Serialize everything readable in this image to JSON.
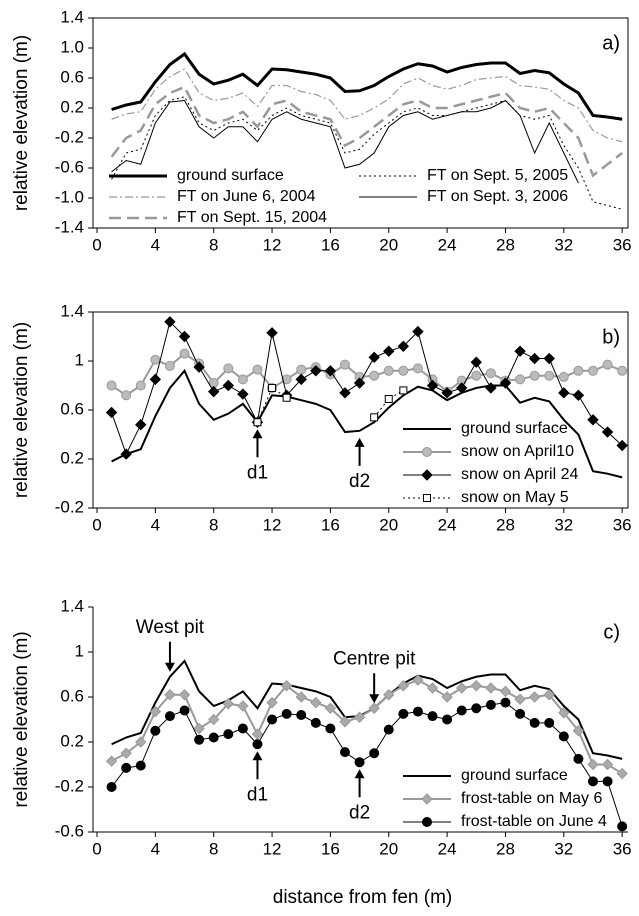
{
  "chart_data": [
    {
      "type": "line",
      "panel_label": "a)",
      "y_label": "relative elevation (m)",
      "x": [
        1,
        2,
        3,
        4,
        5,
        6,
        7,
        8,
        9,
        10,
        11,
        12,
        13,
        14,
        15,
        16,
        17,
        18,
        19,
        20,
        21,
        22,
        23,
        24,
        25,
        26,
        27,
        28,
        29,
        30,
        31,
        32,
        33,
        34,
        35,
        36
      ],
      "xlim": [
        0,
        36.4
      ],
      "xticks": [
        0,
        4,
        8,
        12,
        16,
        20,
        24,
        28,
        32,
        36
      ],
      "ylim": [
        -1.4,
        1.4
      ],
      "yticks": [
        1.4,
        {
          "value": 1,
          "label": "1.0"
        },
        0.6,
        0.2,
        -0.2,
        -0.6,
        {
          "value": -1,
          "label": "-1.0"
        },
        -1.4
      ],
      "legend": "lower left",
      "legend_columns": 2,
      "series": [
        {
          "name": "ground surface",
          "color": "#000000",
          "width": 3,
          "dash": "solid",
          "values": [
            0.18,
            0.24,
            0.28,
            0.55,
            0.78,
            0.92,
            0.65,
            0.52,
            0.57,
            0.65,
            0.5,
            0.72,
            0.71,
            0.68,
            0.65,
            0.6,
            0.42,
            0.43,
            0.5,
            0.62,
            0.72,
            0.79,
            0.76,
            0.68,
            0.74,
            0.78,
            0.8,
            0.8,
            0.66,
            0.7,
            0.67,
            0.52,
            0.4,
            0.1,
            0.08,
            0.05
          ]
        },
        {
          "name": "FT on Sept. 5, 2005",
          "color": "#000000",
          "width": 1,
          "dash": "dot",
          "values": [
            -0.75,
            -0.4,
            -0.35,
            0.1,
            0.3,
            0.35,
            0,
            -0.1,
            0,
            0.05,
            -0.1,
            0.1,
            0.2,
            0.1,
            0.05,
            0,
            -0.4,
            -0.35,
            -0.15,
            0,
            0.15,
            0.2,
            0.1,
            0.1,
            0.15,
            0.2,
            0.25,
            0.3,
            0.1,
            0.05,
            0.1,
            -0.3,
            -0.6,
            -1.05,
            -1.1,
            -1.15
          ]
        },
        {
          "name": "FT on June 6, 2004",
          "color": "#999999",
          "width": 1.2,
          "dash": "dashdot",
          "values": [
            0.05,
            0.12,
            0.15,
            0.45,
            0.62,
            0.72,
            0.4,
            0.3,
            0.33,
            0.4,
            0.22,
            0.5,
            0.5,
            0.42,
            0.38,
            0.3,
            0.05,
            0.1,
            0.2,
            0.32,
            0.52,
            0.6,
            0.5,
            0.45,
            0.5,
            0.58,
            0.6,
            0.62,
            0.5,
            0.48,
            0.45,
            0.3,
            0.2,
            -0.1,
            -0.2,
            -0.25
          ]
        },
        {
          "name": "FT on Sept. 3, 2006",
          "color": "#000000",
          "width": 1,
          "dash": "solid",
          "values": [
            -0.65,
            -0.5,
            -0.55,
            0,
            0.28,
            0.3,
            -0.05,
            -0.2,
            -0.05,
            -0.05,
            -0.25,
            0.05,
            0.15,
            0.05,
            0,
            -0.05,
            -0.6,
            -0.55,
            -0.4,
            -0.05,
            0.1,
            0.15,
            0.05,
            0.1,
            0.15,
            0.15,
            0.2,
            0.3,
            0.1,
            -0.4,
            0,
            -0.4,
            -0.8,
            null,
            null,
            null
          ]
        },
        {
          "name": "FT on Sept. 15, 2004",
          "color": "#999999",
          "width": 2.5,
          "dash": "dash",
          "values": [
            -0.45,
            -0.2,
            -0.1,
            0.25,
            0.4,
            0.48,
            0.1,
            0,
            0.05,
            0.15,
            -0.05,
            0.25,
            0.3,
            0.15,
            0.1,
            0.05,
            -0.3,
            -0.2,
            -0.05,
            0.1,
            0.25,
            0.3,
            0.2,
            0.2,
            0.25,
            0.3,
            0.35,
            0.4,
            0.2,
            0.15,
            0.2,
            0,
            -0.2,
            -0.7,
            -0.55,
            -0.4
          ]
        }
      ]
    },
    {
      "type": "line",
      "panel_label": "b)",
      "y_label": "relative elevation (m)",
      "x": [
        1,
        2,
        3,
        4,
        5,
        6,
        7,
        8,
        9,
        10,
        11,
        12,
        13,
        14,
        15,
        16,
        17,
        18,
        19,
        20,
        21,
        22,
        23,
        24,
        25,
        26,
        27,
        28,
        29,
        30,
        31,
        32,
        33,
        34,
        35,
        36
      ],
      "xlim": [
        0,
        36.4
      ],
      "xticks": [
        0,
        4,
        8,
        12,
        16,
        20,
        24,
        28,
        32,
        36
      ],
      "ylim": [
        -0.2,
        1.4
      ],
      "yticks": [
        1.4,
        1,
        0.6,
        0.2,
        -0.2
      ],
      "legend": "lower right",
      "legend_columns": 1,
      "annotations": [
        {
          "text": "d1",
          "x": 11,
          "side": "below"
        },
        {
          "text": "d2",
          "x": 18,
          "side": "below"
        }
      ],
      "series": [
        {
          "name": "ground surface",
          "color": "#000000",
          "width": 2,
          "dash": "solid",
          "values": [
            0.18,
            0.24,
            0.28,
            0.55,
            0.78,
            0.92,
            0.65,
            0.52,
            0.57,
            0.65,
            0.5,
            0.72,
            0.71,
            0.68,
            0.65,
            0.6,
            0.42,
            0.43,
            0.5,
            0.62,
            0.72,
            0.79,
            0.76,
            0.68,
            0.74,
            0.78,
            0.8,
            0.8,
            0.66,
            0.7,
            0.67,
            0.52,
            0.4,
            0.1,
            0.08,
            0.05
          ]
        },
        {
          "name": "snow on April10",
          "color": "#999999",
          "width": 2,
          "dash": "solid",
          "marker": "circle",
          "marker_fill": "#bbbbbb",
          "values": [
            0.8,
            0.72,
            0.8,
            1.01,
            0.96,
            1.06,
            0.98,
            0.82,
            0.94,
            0.85,
            0.93,
            0.78,
            0.85,
            0.93,
            0.95,
            0.89,
            0.97,
            0.87,
            0.88,
            0.92,
            0.92,
            0.94,
            0.85,
            0.75,
            0.84,
            0.88,
            0.9,
            0.84,
            0.85,
            0.88,
            0.88,
            0.87,
            0.92,
            0.92,
            0.97,
            0.92
          ]
        },
        {
          "name": "snow on April 24",
          "color": "#000000",
          "width": 1,
          "dash": "solid",
          "marker": "diamond",
          "marker_fill": "#000000",
          "values": [
            0.58,
            0.24,
            0.48,
            0.85,
            1.32,
            1.2,
            0.95,
            0.75,
            0.8,
            0.73,
            0.5,
            1.23,
            0.72,
            0.85,
            0.92,
            0.92,
            0.74,
            0.82,
            1.03,
            1.08,
            1.12,
            1.24,
            0.8,
            0.74,
            0.78,
            0.99,
            0.78,
            0.82,
            1.08,
            1.02,
            1.02,
            0.74,
            0.72,
            0.52,
            0.42,
            0.31
          ]
        },
        {
          "name": "snow on May 5",
          "color": "#000000",
          "width": 1,
          "dash": "dot",
          "marker": "square",
          "marker_fill": "#ffffff",
          "values": [
            null,
            null,
            null,
            null,
            null,
            null,
            null,
            null,
            null,
            null,
            0.5,
            0.78,
            0.7,
            null,
            null,
            null,
            null,
            null,
            0.54,
            0.69,
            0.76,
            null,
            null,
            null,
            null,
            null,
            null,
            null,
            null,
            null,
            null,
            null,
            null,
            null,
            null,
            null
          ]
        }
      ]
    },
    {
      "type": "line",
      "panel_label": "c)",
      "y_label": "relative elevation (m)",
      "x_label": "distance from fen (m)",
      "x": [
        1,
        2,
        3,
        4,
        5,
        6,
        7,
        8,
        9,
        10,
        11,
        12,
        13,
        14,
        15,
        16,
        17,
        18,
        19,
        20,
        21,
        22,
        23,
        24,
        25,
        26,
        27,
        28,
        29,
        30,
        31,
        32,
        33,
        34,
        35,
        36
      ],
      "xlim": [
        0,
        36.4
      ],
      "xticks": [
        0,
        4,
        8,
        12,
        16,
        20,
        24,
        28,
        32,
        36
      ],
      "ylim": [
        -0.6,
        1.4
      ],
      "yticks": [
        1.4,
        1,
        0.6,
        0.2,
        -0.2,
        -0.6
      ],
      "legend": "lower right",
      "legend_columns": 1,
      "annotations": [
        {
          "text": "West pit",
          "x": 5,
          "side": "above"
        },
        {
          "text": "Centre pit",
          "x": 19,
          "side": "above"
        },
        {
          "text": "d1",
          "x": 11,
          "side": "below"
        },
        {
          "text": "d2",
          "x": 18,
          "side": "below"
        }
      ],
      "series": [
        {
          "name": "ground surface",
          "color": "#000000",
          "width": 2,
          "dash": "solid",
          "values": [
            0.18,
            0.24,
            0.28,
            0.55,
            0.78,
            0.92,
            0.65,
            0.52,
            0.57,
            0.65,
            0.5,
            0.72,
            0.71,
            0.68,
            0.65,
            0.6,
            0.42,
            0.43,
            0.5,
            0.62,
            0.72,
            0.79,
            0.76,
            0.68,
            0.74,
            0.78,
            0.8,
            0.8,
            0.66,
            0.7,
            0.67,
            0.52,
            0.4,
            0.1,
            0.08,
            0.05
          ]
        },
        {
          "name": "frost-table on May 6",
          "color": "#999999",
          "width": 2,
          "dash": "solid",
          "marker": "diamond",
          "marker_fill": "#aaaaaa",
          "values": [
            0.03,
            0.1,
            0.2,
            0.47,
            0.62,
            0.62,
            0.32,
            0.4,
            0.54,
            0.52,
            0.27,
            0.55,
            0.7,
            0.6,
            0.55,
            0.5,
            0.38,
            0.42,
            0.5,
            0.62,
            0.7,
            0.75,
            0.68,
            0.6,
            0.68,
            0.7,
            0.68,
            0.65,
            0.58,
            0.6,
            0.62,
            0.46,
            0.3,
            0,
            0,
            -0.08
          ]
        },
        {
          "name": "frost-table on June 4",
          "color": "#000000",
          "width": 1,
          "dash": "solid",
          "marker": "circle",
          "marker_fill": "#000000",
          "values": [
            -0.2,
            -0.03,
            -0.01,
            0.3,
            0.43,
            0.48,
            0.22,
            0.24,
            0.27,
            0.32,
            0.18,
            0.4,
            0.45,
            0.44,
            0.37,
            0.32,
            0.11,
            0.02,
            0.1,
            0.31,
            0.45,
            0.47,
            0.43,
            0.4,
            0.48,
            0.5,
            0.53,
            0.55,
            0.45,
            0.37,
            0.37,
            0.25,
            0.05,
            -0.15,
            -0.15,
            -0.55
          ]
        }
      ]
    }
  ]
}
